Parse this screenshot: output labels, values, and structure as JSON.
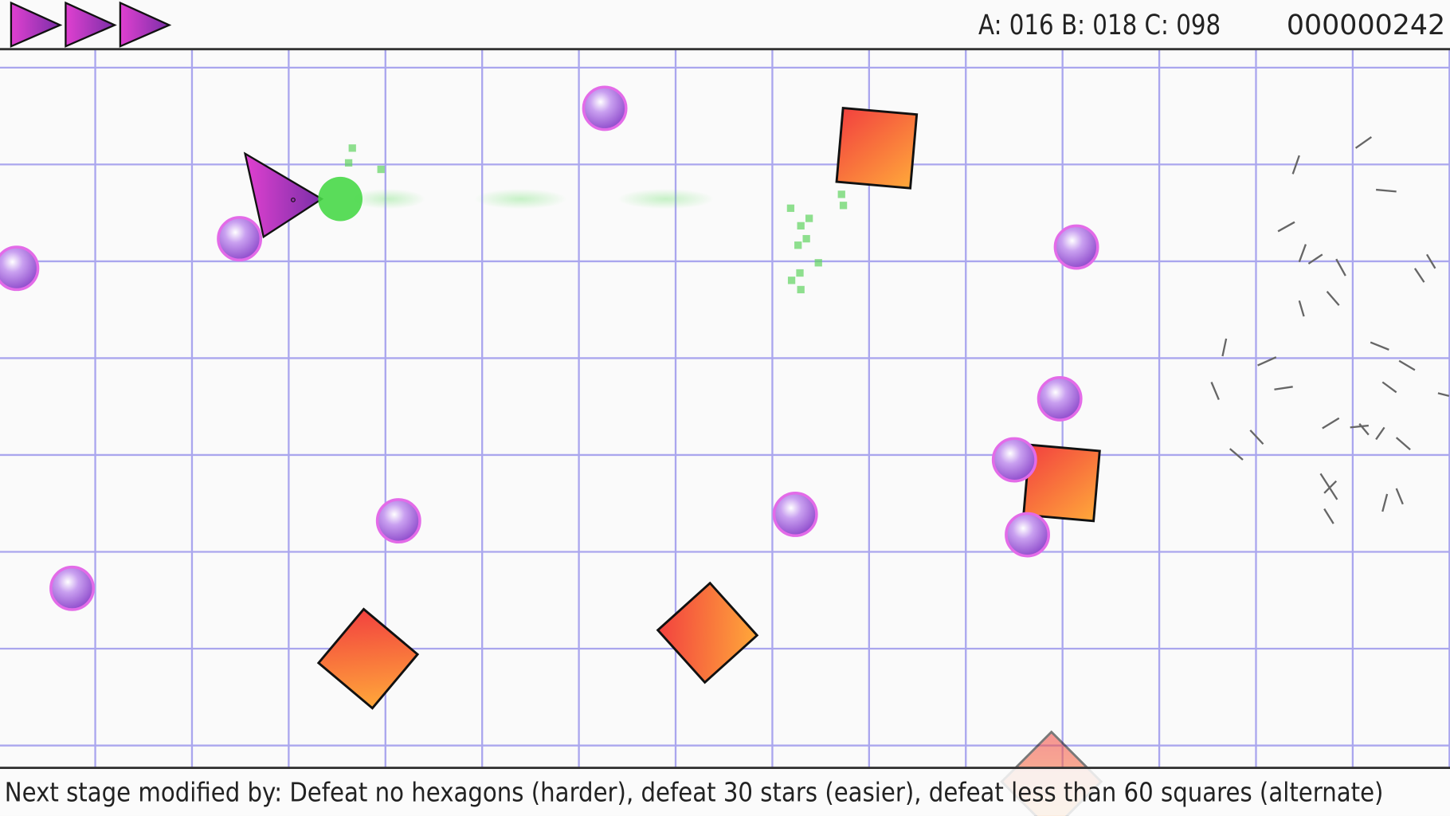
{
  "hud": {
    "counters": "A: 016 B: 018 C: 098",
    "score": "000000242"
  },
  "footer": {
    "message": "Next stage modified by: Defeat no hexagons (harder), defeat 30 stars (easier), defeat less than 60 squares (alternate)"
  }
}
